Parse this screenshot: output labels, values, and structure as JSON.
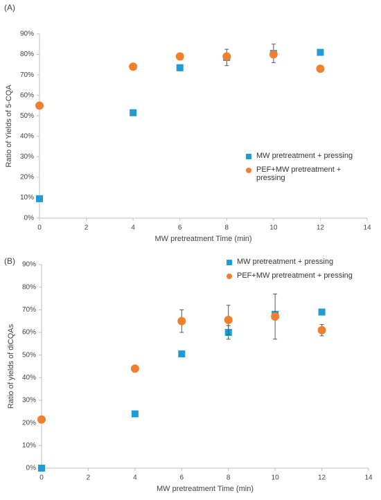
{
  "chart_data": [
    {
      "type": "scatter",
      "label": "(A)",
      "x_label": "MW pretreatment Time (min)",
      "y_label": "Ratio of Yields of 5-CQA",
      "xlim": [
        0,
        14
      ],
      "xticks": [
        0,
        2,
        4,
        6,
        8,
        10,
        12,
        14
      ],
      "ylim": [
        0,
        90
      ],
      "yticks": [
        {
          "value": 0,
          "label": "0%"
        },
        {
          "value": 10,
          "label": "10%"
        },
        {
          "value": 20,
          "label": "20%"
        },
        {
          "value": 30,
          "label": "30%"
        },
        {
          "value": 40,
          "label": "40%"
        },
        {
          "value": 50,
          "label": "50%"
        },
        {
          "value": 60,
          "label": "60%"
        },
        {
          "value": 70,
          "label": "70%"
        },
        {
          "value": 80,
          "label": "80%"
        },
        {
          "value": 90,
          "label": "90%"
        }
      ],
      "legend": "center right",
      "series": [
        {
          "name": "MW pretreatment + pressing",
          "color": "#1f9bd7",
          "marker": "square",
          "x": [
            0,
            4,
            6,
            8,
            10,
            12
          ],
          "values": [
            9.5,
            51.5,
            73.5,
            78.5,
            80.5,
            81
          ],
          "errors": [
            null,
            null,
            1.5,
            4,
            4.5,
            null
          ]
        },
        {
          "name": "PEF+MW pretreatment + pressing",
          "color": "#f07f2e",
          "marker": "circle",
          "x": [
            0,
            4,
            6,
            8,
            10,
            12
          ],
          "values": [
            55,
            74,
            79,
            79,
            80,
            73
          ],
          "errors": [
            null,
            null,
            null,
            null,
            null,
            null
          ]
        }
      ]
    },
    {
      "type": "scatter",
      "label": "(B)",
      "x_label": "MW pretreatment Time (min)",
      "y_label": "Ratio of yields of diCQAs",
      "xlim": [
        0,
        14
      ],
      "xticks": [
        0,
        2,
        4,
        6,
        8,
        10,
        12,
        14
      ],
      "ylim": [
        0,
        90
      ],
      "yticks": [
        {
          "value": 0,
          "label": "0%"
        },
        {
          "value": 10,
          "label": "10%"
        },
        {
          "value": 20,
          "label": "20%"
        },
        {
          "value": 30,
          "label": "30%"
        },
        {
          "value": 40,
          "label": "40%"
        },
        {
          "value": 50,
          "label": "50%"
        },
        {
          "value": 60,
          "label": "60%"
        },
        {
          "value": 70,
          "label": "70%"
        },
        {
          "value": 80,
          "label": "80%"
        },
        {
          "value": 90,
          "label": "90%"
        }
      ],
      "legend": "upper right",
      "series": [
        {
          "name": "MW pretreatment + pressing",
          "color": "#1f9bd7",
          "marker": "square",
          "x": [
            0,
            4,
            6,
            8,
            10,
            12
          ],
          "values": [
            0,
            24,
            50.5,
            60,
            68,
            69
          ],
          "errors": [
            null,
            null,
            null,
            3,
            null,
            null
          ]
        },
        {
          "name": "PEF+MW pretreatment + pressing",
          "color": "#f07f2e",
          "marker": "circle",
          "x": [
            0,
            4,
            6,
            8,
            10,
            12
          ],
          "values": [
            21.5,
            44,
            65,
            65.5,
            67,
            61
          ],
          "errors": [
            null,
            null,
            5,
            6.5,
            10,
            2.5
          ]
        }
      ]
    }
  ]
}
